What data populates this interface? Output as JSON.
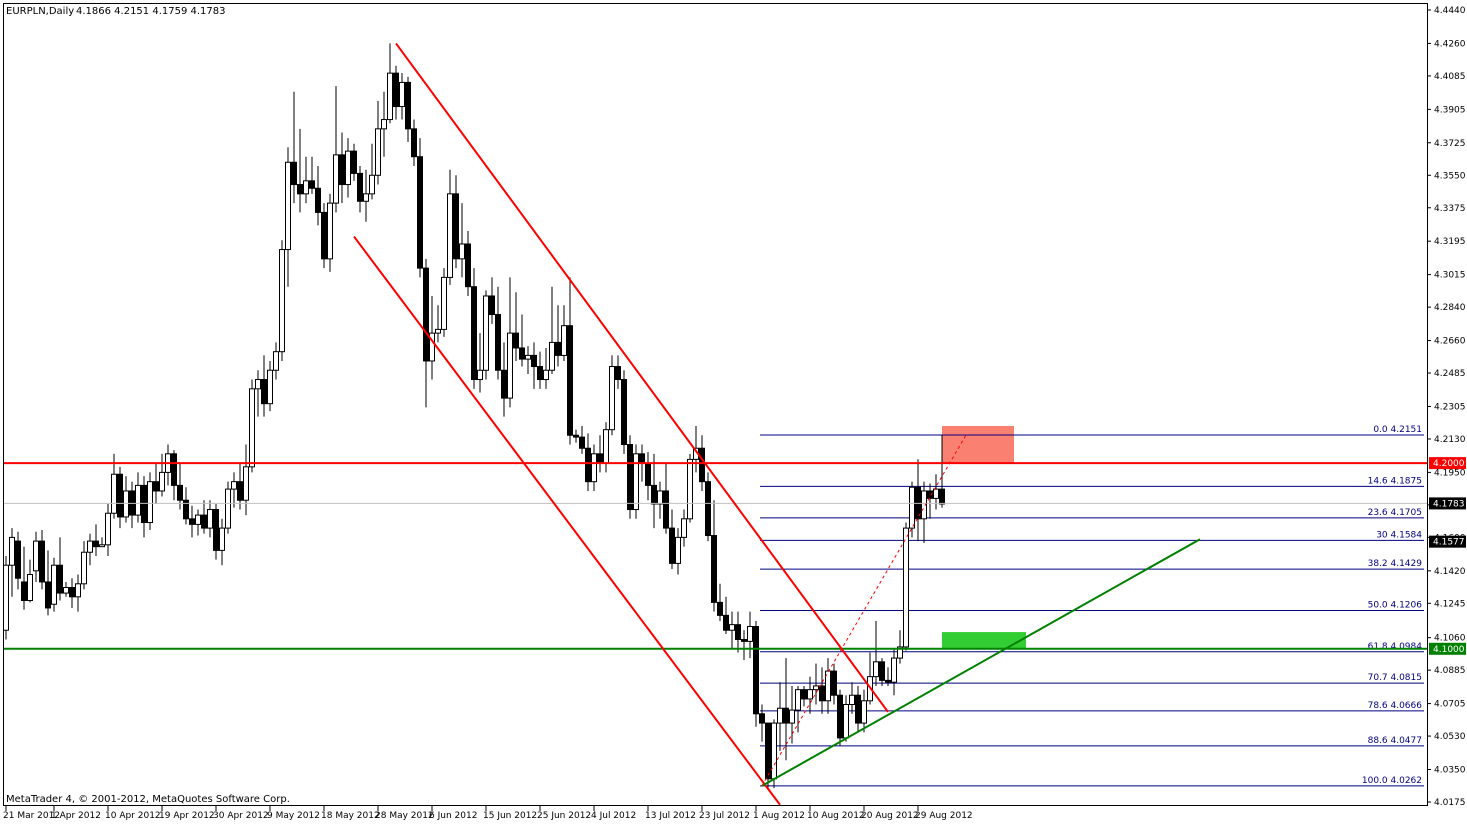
{
  "header": {
    "symbol": "EURPLN,Daily",
    "ohlc": "4.1866 4.2151 4.1759 4.1783"
  },
  "footer": {
    "copyright": "MetaTrader 4, © 2001-2012, MetaQuotes Software Corp."
  },
  "colors": {
    "background": "#ffffff",
    "grid": "#c0c0c0",
    "candle": "#000000",
    "bull_fill": "#ffffff",
    "channel": "#ff0000",
    "resistance": "#ff0000",
    "support": "#008000",
    "trendline": "#008000",
    "fib": "#000080",
    "zone_sell": "#fa8072",
    "zone_buy": "#32cd32"
  },
  "chart_data": {
    "type": "candlestick",
    "ylim": [
      4.0175,
      4.444
    ],
    "y_ticks": [
      "4.4440",
      "4.4260",
      "4.4085",
      "4.3905",
      "4.3725",
      "4.3550",
      "4.3375",
      "4.3195",
      "4.3015",
      "4.2840",
      "4.2660",
      "4.2485",
      "4.2305",
      "4.2130",
      "4.1950",
      "4.1775",
      "4.1600",
      "4.1420",
      "4.1245",
      "4.1060",
      "4.0885",
      "4.0705",
      "4.0530",
      "4.0350",
      "4.0175"
    ],
    "x_ticks": [
      {
        "bar": 0,
        "label": "21 Mar 2012"
      },
      {
        "bar": 8,
        "label": "1 Apr 2012"
      },
      {
        "bar": 17,
        "label": "10 Apr 2012"
      },
      {
        "bar": 26,
        "label": "19 Apr 2012"
      },
      {
        "bar": 35,
        "label": "30 Apr 2012"
      },
      {
        "bar": 44,
        "label": "9 May 2012"
      },
      {
        "bar": 53,
        "label": "18 May 2012"
      },
      {
        "bar": 62,
        "label": "28 May 2012"
      },
      {
        "bar": 71,
        "label": "6 Jun 2012"
      },
      {
        "bar": 80,
        "label": "15 Jun 2012"
      },
      {
        "bar": 89,
        "label": "25 Jun 2012"
      },
      {
        "bar": 98,
        "label": "4 Jul 2012"
      },
      {
        "bar": 107,
        "label": "13 Jul 2012"
      },
      {
        "bar": 116,
        "label": "23 Jul 2012"
      },
      {
        "bar": 125,
        "label": "1 Aug 2012"
      },
      {
        "bar": 134,
        "label": "10 Aug 2012"
      },
      {
        "bar": 143,
        "label": "20 Aug 2012"
      },
      {
        "bar": 152,
        "label": "29 Aug 2012"
      }
    ],
    "ohlc": [
      [
        4.11,
        4.15,
        4.105,
        4.145
      ],
      [
        4.145,
        4.165,
        4.128,
        4.16
      ],
      [
        4.158,
        4.163,
        4.132,
        4.138
      ],
      [
        4.136,
        4.155,
        4.121,
        4.126
      ],
      [
        4.126,
        4.148,
        4.125,
        4.14
      ],
      [
        4.142,
        4.163,
        4.136,
        4.158
      ],
      [
        4.158,
        4.164,
        4.132,
        4.136
      ],
      [
        4.136,
        4.153,
        4.118,
        4.122
      ],
      [
        4.124,
        4.149,
        4.12,
        4.145
      ],
      [
        4.145,
        4.16,
        4.126,
        4.13
      ],
      [
        4.13,
        4.136,
        4.128,
        4.133
      ],
      [
        4.133,
        4.138,
        4.122,
        4.128
      ],
      [
        4.128,
        4.14,
        4.12,
        4.135
      ],
      [
        4.135,
        4.158,
        4.132,
        4.152
      ],
      [
        4.152,
        4.162,
        4.145,
        4.158
      ],
      [
        4.158,
        4.167,
        4.15,
        4.155
      ],
      [
        4.155,
        4.16,
        4.155,
        4.156
      ],
      [
        4.156,
        4.178,
        4.15,
        4.173
      ],
      [
        4.173,
        4.205,
        4.17,
        4.194
      ],
      [
        4.194,
        4.198,
        4.165,
        4.171
      ],
      [
        4.171,
        4.193,
        4.168,
        4.185
      ],
      [
        4.185,
        4.19,
        4.165,
        4.172
      ],
      [
        4.172,
        4.195,
        4.168,
        4.188
      ],
      [
        4.188,
        4.193,
        4.16,
        4.168
      ],
      [
        4.168,
        4.195,
        4.164,
        4.19
      ],
      [
        4.19,
        4.2,
        4.178,
        4.185
      ],
      [
        4.185,
        4.205,
        4.182,
        4.195
      ],
      [
        4.195,
        4.21,
        4.188,
        4.205
      ],
      [
        4.205,
        4.207,
        4.18,
        4.188
      ],
      [
        4.188,
        4.2,
        4.175,
        4.18
      ],
      [
        4.18,
        4.187,
        4.167,
        4.17
      ],
      [
        4.17,
        4.177,
        4.16,
        4.167
      ],
      [
        4.167,
        4.175,
        4.161,
        4.172
      ],
      [
        4.172,
        4.18,
        4.162,
        4.165
      ],
      [
        4.165,
        4.18,
        4.16,
        4.175
      ],
      [
        4.175,
        4.178,
        4.148,
        4.153
      ],
      [
        4.153,
        4.17,
        4.145,
        4.165
      ],
      [
        4.165,
        4.19,
        4.162,
        4.186
      ],
      [
        4.186,
        4.195,
        4.176,
        4.19
      ],
      [
        4.19,
        4.2,
        4.175,
        4.18
      ],
      [
        4.18,
        4.21,
        4.172,
        4.198
      ],
      [
        4.198,
        4.245,
        4.195,
        4.24
      ],
      [
        4.24,
        4.25,
        4.225,
        4.245
      ],
      [
        4.245,
        4.258,
        4.225,
        4.232
      ],
      [
        4.232,
        4.255,
        4.228,
        4.25
      ],
      [
        4.25,
        4.265,
        4.245,
        4.26
      ],
      [
        4.26,
        4.32,
        4.255,
        4.315
      ],
      [
        4.315,
        4.37,
        4.295,
        4.362
      ],
      [
        4.362,
        4.4,
        4.34,
        4.35
      ],
      [
        4.35,
        4.38,
        4.335,
        4.345
      ],
      [
        4.345,
        4.365,
        4.34,
        4.352
      ],
      [
        4.352,
        4.365,
        4.345,
        4.348
      ],
      [
        4.348,
        4.36,
        4.328,
        4.335
      ],
      [
        4.335,
        4.34,
        4.305,
        4.31
      ],
      [
        4.31,
        4.345,
        4.303,
        4.34
      ],
      [
        4.34,
        4.403,
        4.335,
        4.366
      ],
      [
        4.366,
        4.378,
        4.34,
        4.35
      ],
      [
        4.35,
        4.375,
        4.343,
        4.368
      ],
      [
        4.368,
        4.372,
        4.352,
        4.356
      ],
      [
        4.356,
        4.36,
        4.335,
        4.341
      ],
      [
        4.341,
        4.358,
        4.33,
        4.345
      ],
      [
        4.345,
        4.372,
        4.342,
        4.355
      ],
      [
        4.355,
        4.395,
        4.35,
        4.38
      ],
      [
        4.38,
        4.4,
        4.365,
        4.385
      ],
      [
        4.385,
        4.426,
        4.383,
        4.41
      ],
      [
        4.41,
        4.414,
        4.385,
        4.392
      ],
      [
        4.392,
        4.41,
        4.385,
        4.405
      ],
      [
        4.405,
        4.408,
        4.373,
        4.38
      ],
      [
        4.38,
        4.385,
        4.36,
        4.365
      ],
      [
        4.365,
        4.375,
        4.3,
        4.305
      ],
      [
        4.305,
        4.31,
        4.23,
        4.255
      ],
      [
        4.255,
        4.29,
        4.245,
        4.27
      ],
      [
        4.27,
        4.285,
        4.265,
        4.272
      ],
      [
        4.272,
        4.305,
        4.268,
        4.3
      ],
      [
        4.3,
        4.358,
        4.296,
        4.345
      ],
      [
        4.345,
        4.355,
        4.305,
        4.31
      ],
      [
        4.31,
        4.34,
        4.3,
        4.318
      ],
      [
        4.318,
        4.325,
        4.29,
        4.295
      ],
      [
        4.295,
        4.305,
        4.24,
        4.245
      ],
      [
        4.245,
        4.27,
        4.238,
        4.25
      ],
      [
        4.25,
        4.293,
        4.245,
        4.29
      ],
      [
        4.29,
        4.3,
        4.275,
        4.28
      ],
      [
        4.28,
        4.295,
        4.245,
        4.25
      ],
      [
        4.25,
        4.265,
        4.225,
        4.235
      ],
      [
        4.235,
        4.3,
        4.23,
        4.27
      ],
      [
        4.27,
        4.292,
        4.255,
        4.262
      ],
      [
        4.262,
        4.28,
        4.252,
        4.256
      ],
      [
        4.256,
        4.263,
        4.248,
        4.258
      ],
      [
        4.258,
        4.265,
        4.24,
        4.252
      ],
      [
        4.252,
        4.26,
        4.24,
        4.245
      ],
      [
        4.245,
        4.262,
        4.24,
        4.25
      ],
      [
        4.25,
        4.295,
        4.248,
        4.265
      ],
      [
        4.265,
        4.285,
        4.252,
        4.258
      ],
      [
        4.258,
        4.285,
        4.255,
        4.274
      ],
      [
        4.274,
        4.3,
        4.21,
        4.215
      ],
      [
        4.215,
        4.218,
        4.211,
        4.214
      ],
      [
        4.214,
        4.22,
        4.205,
        4.208
      ],
      [
        4.208,
        4.216,
        4.185,
        4.19
      ],
      [
        4.19,
        4.21,
        4.185,
        4.205
      ],
      [
        4.205,
        4.215,
        4.195,
        4.2
      ],
      [
        4.2,
        4.222,
        4.195,
        4.218
      ],
      [
        4.218,
        4.258,
        4.215,
        4.252
      ],
      [
        4.252,
        4.258,
        4.24,
        4.245
      ],
      [
        4.245,
        4.25,
        4.205,
        4.21
      ],
      [
        4.21,
        4.215,
        4.17,
        4.175
      ],
      [
        4.175,
        4.21,
        4.17,
        4.205
      ],
      [
        4.205,
        4.21,
        4.19,
        4.2
      ],
      [
        4.2,
        4.206,
        4.18,
        4.188
      ],
      [
        4.188,
        4.205,
        4.165,
        4.178
      ],
      [
        4.178,
        4.19,
        4.17,
        4.185
      ],
      [
        4.185,
        4.2,
        4.162,
        4.165
      ],
      [
        4.165,
        4.175,
        4.143,
        4.146
      ],
      [
        4.146,
        4.165,
        4.14,
        4.16
      ],
      [
        4.16,
        4.175,
        4.155,
        4.17
      ],
      [
        4.17,
        4.205,
        4.168,
        4.202
      ],
      [
        4.202,
        4.22,
        4.195,
        4.208
      ],
      [
        4.208,
        4.215,
        4.185,
        4.19
      ],
      [
        4.19,
        4.195,
        4.158,
        4.161
      ],
      [
        4.161,
        4.18,
        4.12,
        4.125
      ],
      [
        4.125,
        4.135,
        4.115,
        4.118
      ],
      [
        4.118,
        4.128,
        4.108,
        4.11
      ],
      [
        4.11,
        4.12,
        4.1,
        4.113
      ],
      [
        4.113,
        4.12,
        4.098,
        4.105
      ],
      [
        4.105,
        4.11,
        4.094,
        4.104
      ],
      [
        4.104,
        4.12,
        4.095,
        4.112
      ],
      [
        4.112,
        4.115,
        4.058,
        4.065
      ],
      [
        4.065,
        4.07,
        4.05,
        4.06
      ],
      [
        4.06,
        4.06,
        4.025,
        4.03
      ],
      [
        4.03,
        4.062,
        4.025,
        4.06
      ],
      [
        4.06,
        4.082,
        4.045,
        4.068
      ],
      [
        4.068,
        4.095,
        4.04,
        4.06
      ],
      [
        4.06,
        4.08,
        4.049,
        4.067
      ],
      [
        4.067,
        4.08,
        4.055,
        4.078
      ],
      [
        4.078,
        4.08,
        4.069,
        4.073
      ],
      [
        4.073,
        4.085,
        4.065,
        4.078
      ],
      [
        4.078,
        4.092,
        4.07,
        4.08
      ],
      [
        4.08,
        4.09,
        4.065,
        4.072
      ],
      [
        4.072,
        4.095,
        4.065,
        4.088
      ],
      [
        4.088,
        4.092,
        4.07,
        4.075
      ],
      [
        4.075,
        4.078,
        4.048,
        4.052
      ],
      [
        4.052,
        4.075,
        4.05,
        4.07
      ],
      [
        4.07,
        4.082,
        4.065,
        4.075
      ],
      [
        4.075,
        4.08,
        4.055,
        4.06
      ],
      [
        4.06,
        4.078,
        4.055,
        4.072
      ],
      [
        4.072,
        4.098,
        4.07,
        4.085
      ],
      [
        4.085,
        4.115,
        4.08,
        4.093
      ],
      [
        4.093,
        4.095,
        4.08,
        4.083
      ],
      [
        4.083,
        4.09,
        4.08,
        4.082
      ],
      [
        4.082,
        4.1,
        4.075,
        4.095
      ],
      [
        4.095,
        4.11,
        4.092,
        4.101
      ],
      [
        4.101,
        4.168,
        4.099,
        4.165
      ],
      [
        4.165,
        4.19,
        4.16,
        4.187
      ],
      [
        4.187,
        4.202,
        4.158,
        4.17
      ],
      [
        4.17,
        4.19,
        4.157,
        4.185
      ],
      [
        4.185,
        4.189,
        4.17,
        4.181
      ],
      [
        4.181,
        4.194,
        4.175,
        4.186
      ],
      [
        4.186,
        4.215,
        4.176,
        4.178
      ]
    ],
    "horizontal_lines": [
      {
        "level": 4.2,
        "role": "resistance",
        "label": "4.2000"
      },
      {
        "level": 4.1,
        "role": "support",
        "label": "4.1000"
      },
      {
        "level": 4.1783,
        "role": "current-price",
        "label": "4.1783"
      }
    ],
    "extra_tag": {
      "level": 4.1577,
      "label": "4.1577"
    },
    "fibonacci": {
      "start_bar": 126,
      "end_bar": 160,
      "levels": [
        {
          "label": "0.0 4.2151",
          "value": 4.2151
        },
        {
          "label": "14.6 4.1875",
          "value": 4.1875
        },
        {
          "label": "23.6 4.1705",
          "value": 4.1705
        },
        {
          "label": "30 4.1584",
          "value": 4.1584
        },
        {
          "label": "38.2 4.1429",
          "value": 4.1429
        },
        {
          "label": "50.0 4.1206",
          "value": 4.1206
        },
        {
          "label": "61.8 4.0984",
          "value": 4.0984
        },
        {
          "label": "70.7 4.0815",
          "value": 4.0815
        },
        {
          "label": "78.6 4.0666",
          "value": 4.0666
        },
        {
          "label": "88.6 4.0477",
          "value": 4.0477
        },
        {
          "label": "100.0 4.0262",
          "value": 4.0262
        }
      ]
    },
    "channel_lines": [
      {
        "from": {
          "bar": 65,
          "price": 4.426
        },
        "to": {
          "bar": 147,
          "price": 4.066
        }
      },
      {
        "from": {
          "bar": 58,
          "price": 4.322
        },
        "to": {
          "bar": 129,
          "price": 4.016
        }
      }
    ],
    "trendline": {
      "from": {
        "bar": 126,
        "price": 4.0262
      },
      "to": {
        "bar": 199,
        "price": 4.159
      }
    },
    "fib_diagonal": {
      "from": {
        "bar": 126,
        "price": 4.0262
      },
      "to": {
        "bar": 160,
        "price": 4.2151
      }
    },
    "zones": [
      {
        "role": "sell",
        "bar_from": 156,
        "bar_to": 168,
        "price_from": 4.2,
        "price_to": 4.22
      },
      {
        "role": "buy",
        "bar_from": 156,
        "bar_to": 170,
        "price_from": 4.1,
        "price_to": 4.109
      }
    ]
  }
}
